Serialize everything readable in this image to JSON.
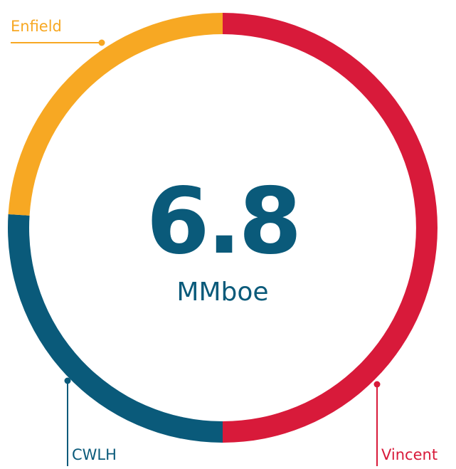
{
  "chart_data": {
    "type": "donut",
    "center_value": 6.8,
    "center_label": "MMboe",
    "categories": [
      "Vincent",
      "CWLH",
      "Enfield"
    ],
    "values": [
      50,
      26,
      24
    ],
    "colors": [
      "#d81a3a",
      "#0a5a7a",
      "#f7a823"
    ]
  }
}
